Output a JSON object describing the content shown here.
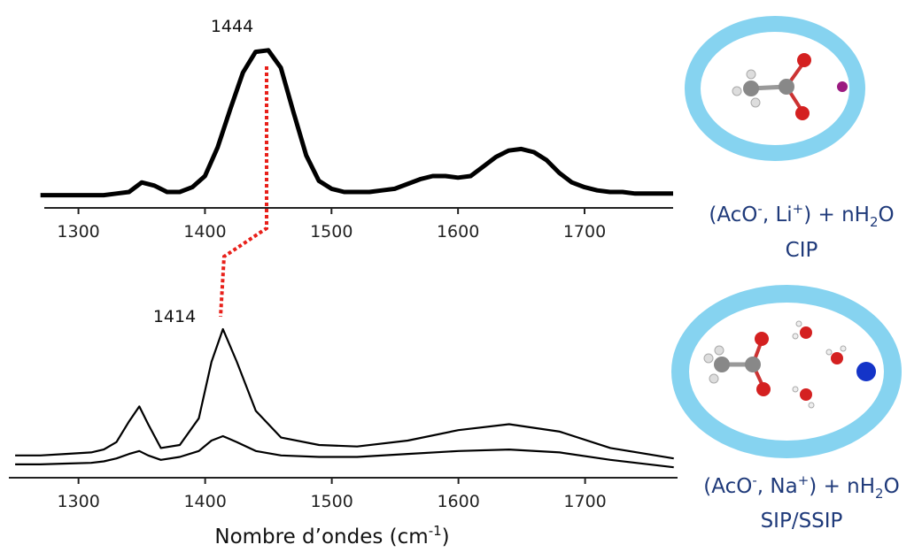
{
  "chart_data": [
    {
      "type": "line",
      "annotation": "1444",
      "xlim": [
        1273,
        1770
      ],
      "xticks": [
        1300,
        1400,
        1500,
        1600,
        1700
      ],
      "ylim": [
        0,
        1
      ],
      "x": [
        1270,
        1280,
        1290,
        1300,
        1310,
        1320,
        1330,
        1340,
        1350,
        1360,
        1370,
        1380,
        1390,
        1400,
        1410,
        1420,
        1430,
        1440,
        1450,
        1460,
        1470,
        1480,
        1490,
        1500,
        1510,
        1520,
        1530,
        1540,
        1550,
        1560,
        1570,
        1580,
        1590,
        1600,
        1610,
        1620,
        1630,
        1640,
        1650,
        1660,
        1670,
        1680,
        1690,
        1700,
        1710,
        1720,
        1730,
        1740,
        1750,
        1760,
        1770
      ],
      "series": [
        {
          "color": "#000000",
          "values": [
            0.08,
            0.08,
            0.08,
            0.08,
            0.08,
            0.08,
            0.09,
            0.1,
            0.16,
            0.14,
            0.1,
            0.1,
            0.13,
            0.2,
            0.38,
            0.62,
            0.85,
            0.98,
            0.99,
            0.88,
            0.6,
            0.33,
            0.17,
            0.12,
            0.1,
            0.1,
            0.1,
            0.11,
            0.12,
            0.15,
            0.18,
            0.2,
            0.2,
            0.19,
            0.2,
            0.26,
            0.32,
            0.36,
            0.37,
            0.35,
            0.3,
            0.22,
            0.16,
            0.13,
            0.11,
            0.1,
            0.1,
            0.09,
            0.09,
            0.09,
            0.09
          ]
        }
      ],
      "side_label": {
        "parts": [
          "(AcO",
          "-",
          ", Li",
          "+",
          ") + nH",
          "2",
          "O"
        ],
        "caption": "CIP"
      }
    },
    {
      "type": "line",
      "annotation": "1414",
      "xlim": [
        1245,
        1773
      ],
      "xticks": [
        1300,
        1400,
        1500,
        1600,
        1700
      ],
      "ylim": [
        0,
        1
      ],
      "xlabel_parts": [
        "Nombre d’ondes (cm",
        "-1",
        ")"
      ],
      "x": [
        1250,
        1270,
        1290,
        1310,
        1320,
        1330,
        1340,
        1348,
        1355,
        1365,
        1380,
        1395,
        1405,
        1414,
        1425,
        1440,
        1460,
        1490,
        1520,
        1560,
        1600,
        1640,
        1680,
        1720,
        1770
      ],
      "series": [
        {
          "color": "#000000",
          "values": [
            0.15,
            0.15,
            0.16,
            0.17,
            0.19,
            0.24,
            0.38,
            0.48,
            0.36,
            0.2,
            0.22,
            0.4,
            0.78,
            1.0,
            0.78,
            0.45,
            0.27,
            0.22,
            0.21,
            0.25,
            0.32,
            0.36,
            0.31,
            0.2,
            0.13
          ]
        },
        {
          "color": "#000000",
          "values": [
            0.09,
            0.09,
            0.095,
            0.1,
            0.11,
            0.13,
            0.16,
            0.18,
            0.15,
            0.12,
            0.14,
            0.18,
            0.25,
            0.28,
            0.24,
            0.18,
            0.15,
            0.14,
            0.14,
            0.16,
            0.18,
            0.19,
            0.17,
            0.12,
            0.07
          ]
        }
      ],
      "side_label": {
        "parts": [
          "(AcO",
          "-",
          ", Na",
          "+",
          ") + nH",
          "2",
          "O"
        ],
        "caption": "SIP/SSIP"
      }
    }
  ]
}
